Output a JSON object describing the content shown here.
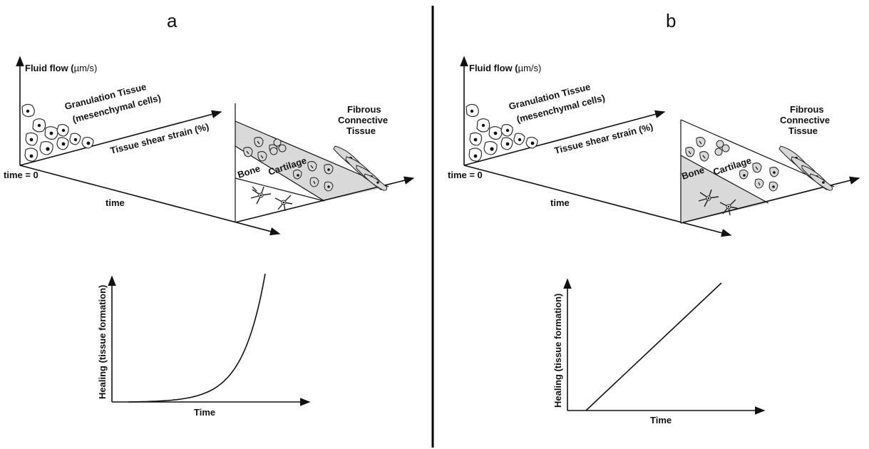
{
  "panels": [
    {
      "letter": "a",
      "top": {
        "y_axis": "Fluid flow (",
        "y_axis_unit": "µm/s)",
        "granulation_1": "Granulation Tissue",
        "granulation_2": "(mesenchymal cells)",
        "shear_axis": "Tissue shear strain (%)",
        "time0": "time = 0",
        "time_axis": "time",
        "fibrous_1": "Fibrous",
        "fibrous_2": "Connective",
        "fibrous_3": "Tissue",
        "bone": "Bone",
        "cartilage": "Cartilage",
        "shaded_region": "cartilage"
      },
      "chart_data": {
        "type": "line",
        "title": "",
        "xlabel": "Time",
        "ylabel": "Healing (tissue formation)",
        "curve": "exponential"
      }
    },
    {
      "letter": "b",
      "top": {
        "y_axis": "Fluid flow (",
        "y_axis_unit": "µm/s)",
        "granulation_1": "Granulation Tissue",
        "granulation_2": "(mesenchymal cells)",
        "shear_axis": "Tissue shear strain (%)",
        "time0": "time = 0",
        "time_axis": "time",
        "fibrous_1": "Fibrous",
        "fibrous_2": "Connective",
        "fibrous_3": "Tissue",
        "bone": "Bone",
        "cartilage": "Cartilage",
        "shaded_region": "bone"
      },
      "chart_data": {
        "type": "line",
        "title": "",
        "xlabel": "Time",
        "ylabel": "Healing (tissue formation)",
        "curve": "linear"
      }
    }
  ],
  "colors": {
    "shade": "#d9d9d9",
    "ink": "#111111",
    "divider": "#000000"
  }
}
